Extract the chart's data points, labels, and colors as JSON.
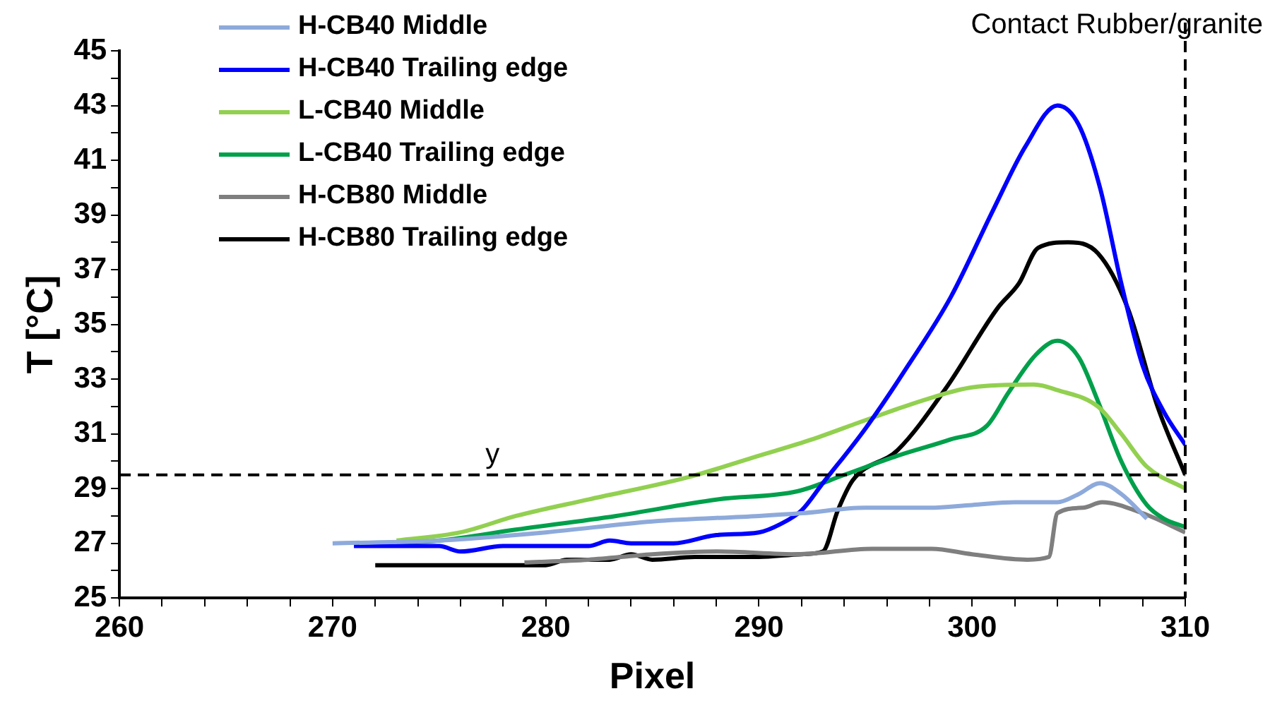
{
  "chart_data": {
    "type": "line",
    "xlabel": "Pixel",
    "ylabel": "T [°C]",
    "xlim": [
      260,
      310
    ],
    "xticks": [
      260,
      {
        "value": 262,
        "label": null
      },
      {
        "value": 264,
        "label": null
      },
      {
        "value": 266,
        "label": null
      },
      {
        "value": 268,
        "label": null
      },
      270,
      {
        "value": 272,
        "label": null
      },
      {
        "value": 274,
        "label": null
      },
      {
        "value": 276,
        "label": null
      },
      {
        "value": 278,
        "label": null
      },
      280,
      {
        "value": 282,
        "label": null
      },
      {
        "value": 284,
        "label": null
      },
      {
        "value": 286,
        "label": null
      },
      {
        "value": 288,
        "label": null
      },
      290,
      {
        "value": 292,
        "label": null
      },
      {
        "value": 294,
        "label": null
      },
      {
        "value": 296,
        "label": null
      },
      {
        "value": 298,
        "label": null
      },
      300,
      {
        "value": 302,
        "label": null
      },
      {
        "value": 304,
        "label": null
      },
      {
        "value": 306,
        "label": null
      },
      {
        "value": 308,
        "label": null
      },
      310
    ],
    "ylim": [
      25,
      45
    ],
    "yticks": [
      25,
      {
        "value": 26,
        "label": null
      },
      27,
      {
        "value": 28,
        "label": null
      },
      29,
      {
        "value": 30,
        "label": null
      },
      31,
      {
        "value": 32,
        "label": null
      },
      33,
      {
        "value": 34,
        "label": null
      },
      35,
      {
        "value": 36,
        "label": null
      },
      37,
      {
        "value": 38,
        "label": null
      },
      39,
      {
        "value": 40,
        "label": null
      },
      41,
      {
        "value": 42,
        "label": null
      },
      43,
      {
        "value": 44,
        "label": null
      },
      45
    ],
    "grid": false,
    "legend": "top left",
    "marker": "none",
    "line_style": "solid",
    "ref_lines": [
      {
        "axis": "y",
        "value": 29.5,
        "label": "y",
        "line_style": "dashed",
        "color": "#000000"
      },
      {
        "axis": "x",
        "value": 310,
        "label": "Contact Rubber/granite",
        "line_style": "dashed",
        "color": "#000000"
      }
    ],
    "series": [
      {
        "name": "H-CB40 Middle",
        "color": "#8eaadb",
        "x": [
          270,
          275,
          280,
          285,
          290,
          292,
          295,
          298,
          300,
          302,
          304,
          305,
          306,
          307,
          308.2
        ],
        "values": [
          27.0,
          27.1,
          27.4,
          27.8,
          28.0,
          28.1,
          28.3,
          28.3,
          28.4,
          28.5,
          28.5,
          28.8,
          29.2,
          28.8,
          27.9
        ]
      },
      {
        "name": "H-CB40 Trailing edge",
        "color": "#0000ff",
        "x": [
          271,
          275,
          276,
          278,
          282,
          283,
          284,
          286,
          288,
          290,
          291,
          292,
          293,
          295,
          297,
          299,
          301,
          302.5,
          304,
          305,
          306,
          307,
          308,
          309,
          310
        ],
        "values": [
          26.9,
          26.9,
          26.7,
          26.9,
          26.9,
          27.1,
          27.0,
          27.0,
          27.3,
          27.4,
          27.7,
          28.2,
          29.2,
          31.2,
          33.5,
          36.0,
          39.2,
          41.5,
          43.0,
          42.3,
          40.0,
          36.5,
          33.5,
          31.8,
          30.6
        ]
      },
      {
        "name": "L-CB40 Middle",
        "color": "#92d050",
        "x": [
          273,
          276,
          278.6,
          282,
          286.6,
          290,
          292.5,
          295,
          298,
          300,
          302.9,
          304,
          305.9,
          307,
          308.2,
          310
        ],
        "values": [
          27.1,
          27.4,
          28.0,
          28.6,
          29.4,
          30.2,
          30.8,
          31.5,
          32.3,
          32.7,
          32.8,
          32.6,
          32.0,
          31.0,
          29.8,
          29.0
        ]
      },
      {
        "name": "L-CB40 Trailing edge",
        "color": "#00a04b",
        "x": [
          273,
          275,
          278.6,
          283.3,
          288,
          291.8,
          294,
          296.5,
          299,
          300.7,
          301.7,
          303,
          304,
          305,
          305.9,
          307,
          308.2,
          309,
          310
        ],
        "values": [
          27.0,
          27.1,
          27.5,
          28.0,
          28.6,
          28.9,
          29.5,
          30.2,
          30.8,
          31.3,
          32.5,
          33.9,
          34.4,
          33.8,
          32.2,
          30.0,
          28.4,
          27.9,
          27.6
        ]
      },
      {
        "name": "H-CB80 Middle",
        "color": "#7f7f7f",
        "x": [
          279,
          282,
          285,
          288,
          291.8,
          295.3,
          298.1,
          300,
          302.6,
          303.6,
          304,
          305.2,
          306.1,
          308,
          310
        ],
        "values": [
          26.3,
          26.4,
          26.6,
          26.7,
          26.6,
          26.8,
          26.8,
          26.6,
          26.4,
          26.5,
          28.1,
          28.3,
          28.5,
          28.1,
          27.4
        ]
      },
      {
        "name": "H-CB80 Trailing edge",
        "color": "#000000",
        "x": [
          272,
          276,
          280,
          281,
          283,
          284,
          285,
          287,
          290,
          292,
          293,
          293.7,
          294.4,
          296.5,
          298.8,
          301.2,
          302.2,
          303.1,
          304.5,
          305.9,
          307.3,
          308.7,
          310
        ],
        "values": [
          26.2,
          26.2,
          26.2,
          26.4,
          26.4,
          26.6,
          26.4,
          26.5,
          26.5,
          26.6,
          26.7,
          28.2,
          29.3,
          30.4,
          32.7,
          35.6,
          36.5,
          37.8,
          38.0,
          37.6,
          35.6,
          32.0,
          29.5
        ]
      }
    ]
  }
}
